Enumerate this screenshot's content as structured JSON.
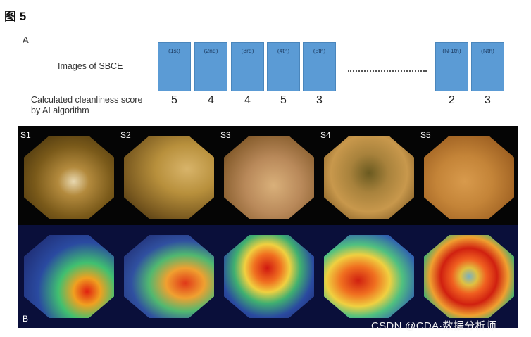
{
  "figure": {
    "title": "图 5",
    "panel_a_label": "A",
    "panel_b_label": "B",
    "images_label": "Images of SBCE",
    "score_label_line1": "Calculated cleanliness score",
    "score_label_line2": "by AI algorithm",
    "frames": [
      {
        "label": "(1st)",
        "score": "5"
      },
      {
        "label": "(2nd)",
        "score": "4"
      },
      {
        "label": "(3rd)",
        "score": "4"
      },
      {
        "label": "(4th)",
        "score": "5"
      },
      {
        "label": "(5th)",
        "score": "3"
      },
      {
        "label": "(N-1th)",
        "score": "2"
      },
      {
        "label": "(Nth)",
        "score": "3"
      }
    ],
    "sample_labels": [
      "S1",
      "S2",
      "S3",
      "S4",
      "S5"
    ],
    "watermark": "CSDN @CDA·数据分析师"
  },
  "colors": {
    "frame_fill": "#5b9bd5",
    "heatmap_background": "#0a0f3a"
  }
}
